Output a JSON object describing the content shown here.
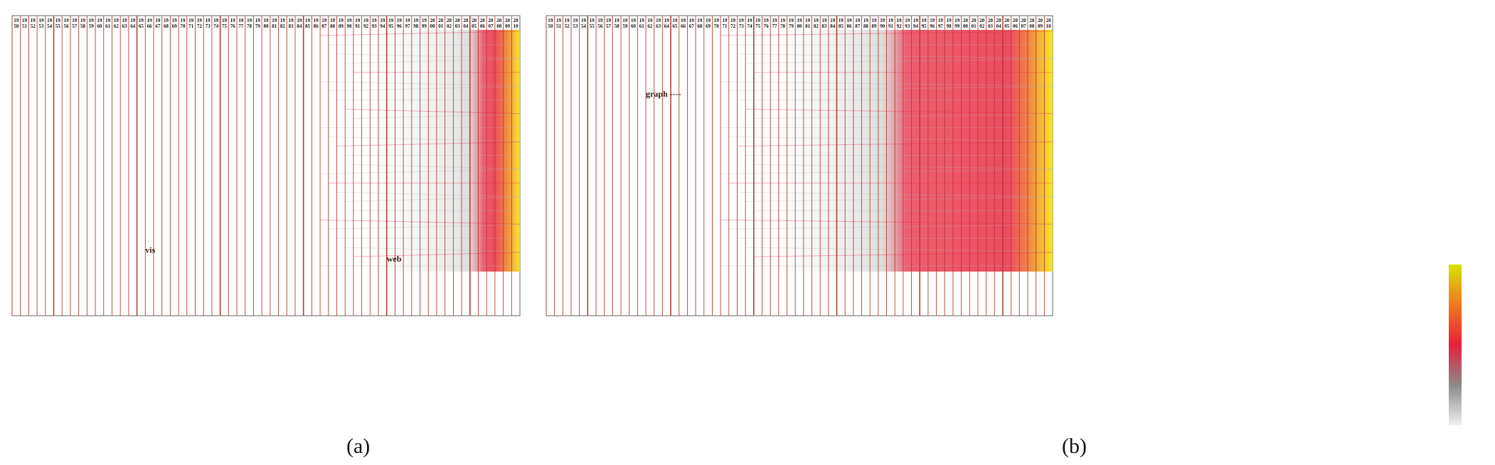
{
  "figure": {
    "panels": [
      {
        "id": "a",
        "caption": "(a)",
        "annotations": [
          {
            "label": "vis",
            "year_index": 16,
            "row": 0.79
          },
          {
            "label": "web",
            "year_index": 45,
            "row": 0.82
          }
        ],
        "first_active_year_index": 39
      },
      {
        "id": "b",
        "caption": "(b)",
        "annotations": [
          {
            "label": "graph ----",
            "year_index": 12,
            "row": 0.27
          }
        ],
        "first_active_year_index": 23
      }
    ],
    "years": [
      "1950",
      "1951",
      "1952",
      "1953",
      "1954",
      "1955",
      "1956",
      "1957",
      "1958",
      "1959",
      "1960",
      "1961",
      "1962",
      "1963",
      "1964",
      "1965",
      "1966",
      "1967",
      "1968",
      "1969",
      "1970",
      "1971",
      "1972",
      "1973",
      "1974",
      "1975",
      "1976",
      "1977",
      "1978",
      "1979",
      "1980",
      "1981",
      "1982",
      "1983",
      "1984",
      "1985",
      "1986",
      "1987",
      "1988",
      "1989",
      "1990",
      "1991",
      "1992",
      "1993",
      "1994",
      "1995",
      "1996",
      "1997",
      "1998",
      "1999",
      "2000",
      "2001",
      "2002",
      "2003",
      "2004",
      "2005",
      "2006",
      "2007",
      "2008",
      "2009",
      "2010"
    ],
    "colors": {
      "axis_line": "#b04030",
      "low": "#b8b8b8",
      "mid": "#e8203a",
      "high": "#f5e600"
    },
    "legend_colorbar": {
      "type": "gradient",
      "stops": [
        "#f0f0f0",
        "#8a8a8a",
        "#e8203a",
        "#f07820",
        "#d8e400"
      ]
    }
  }
}
